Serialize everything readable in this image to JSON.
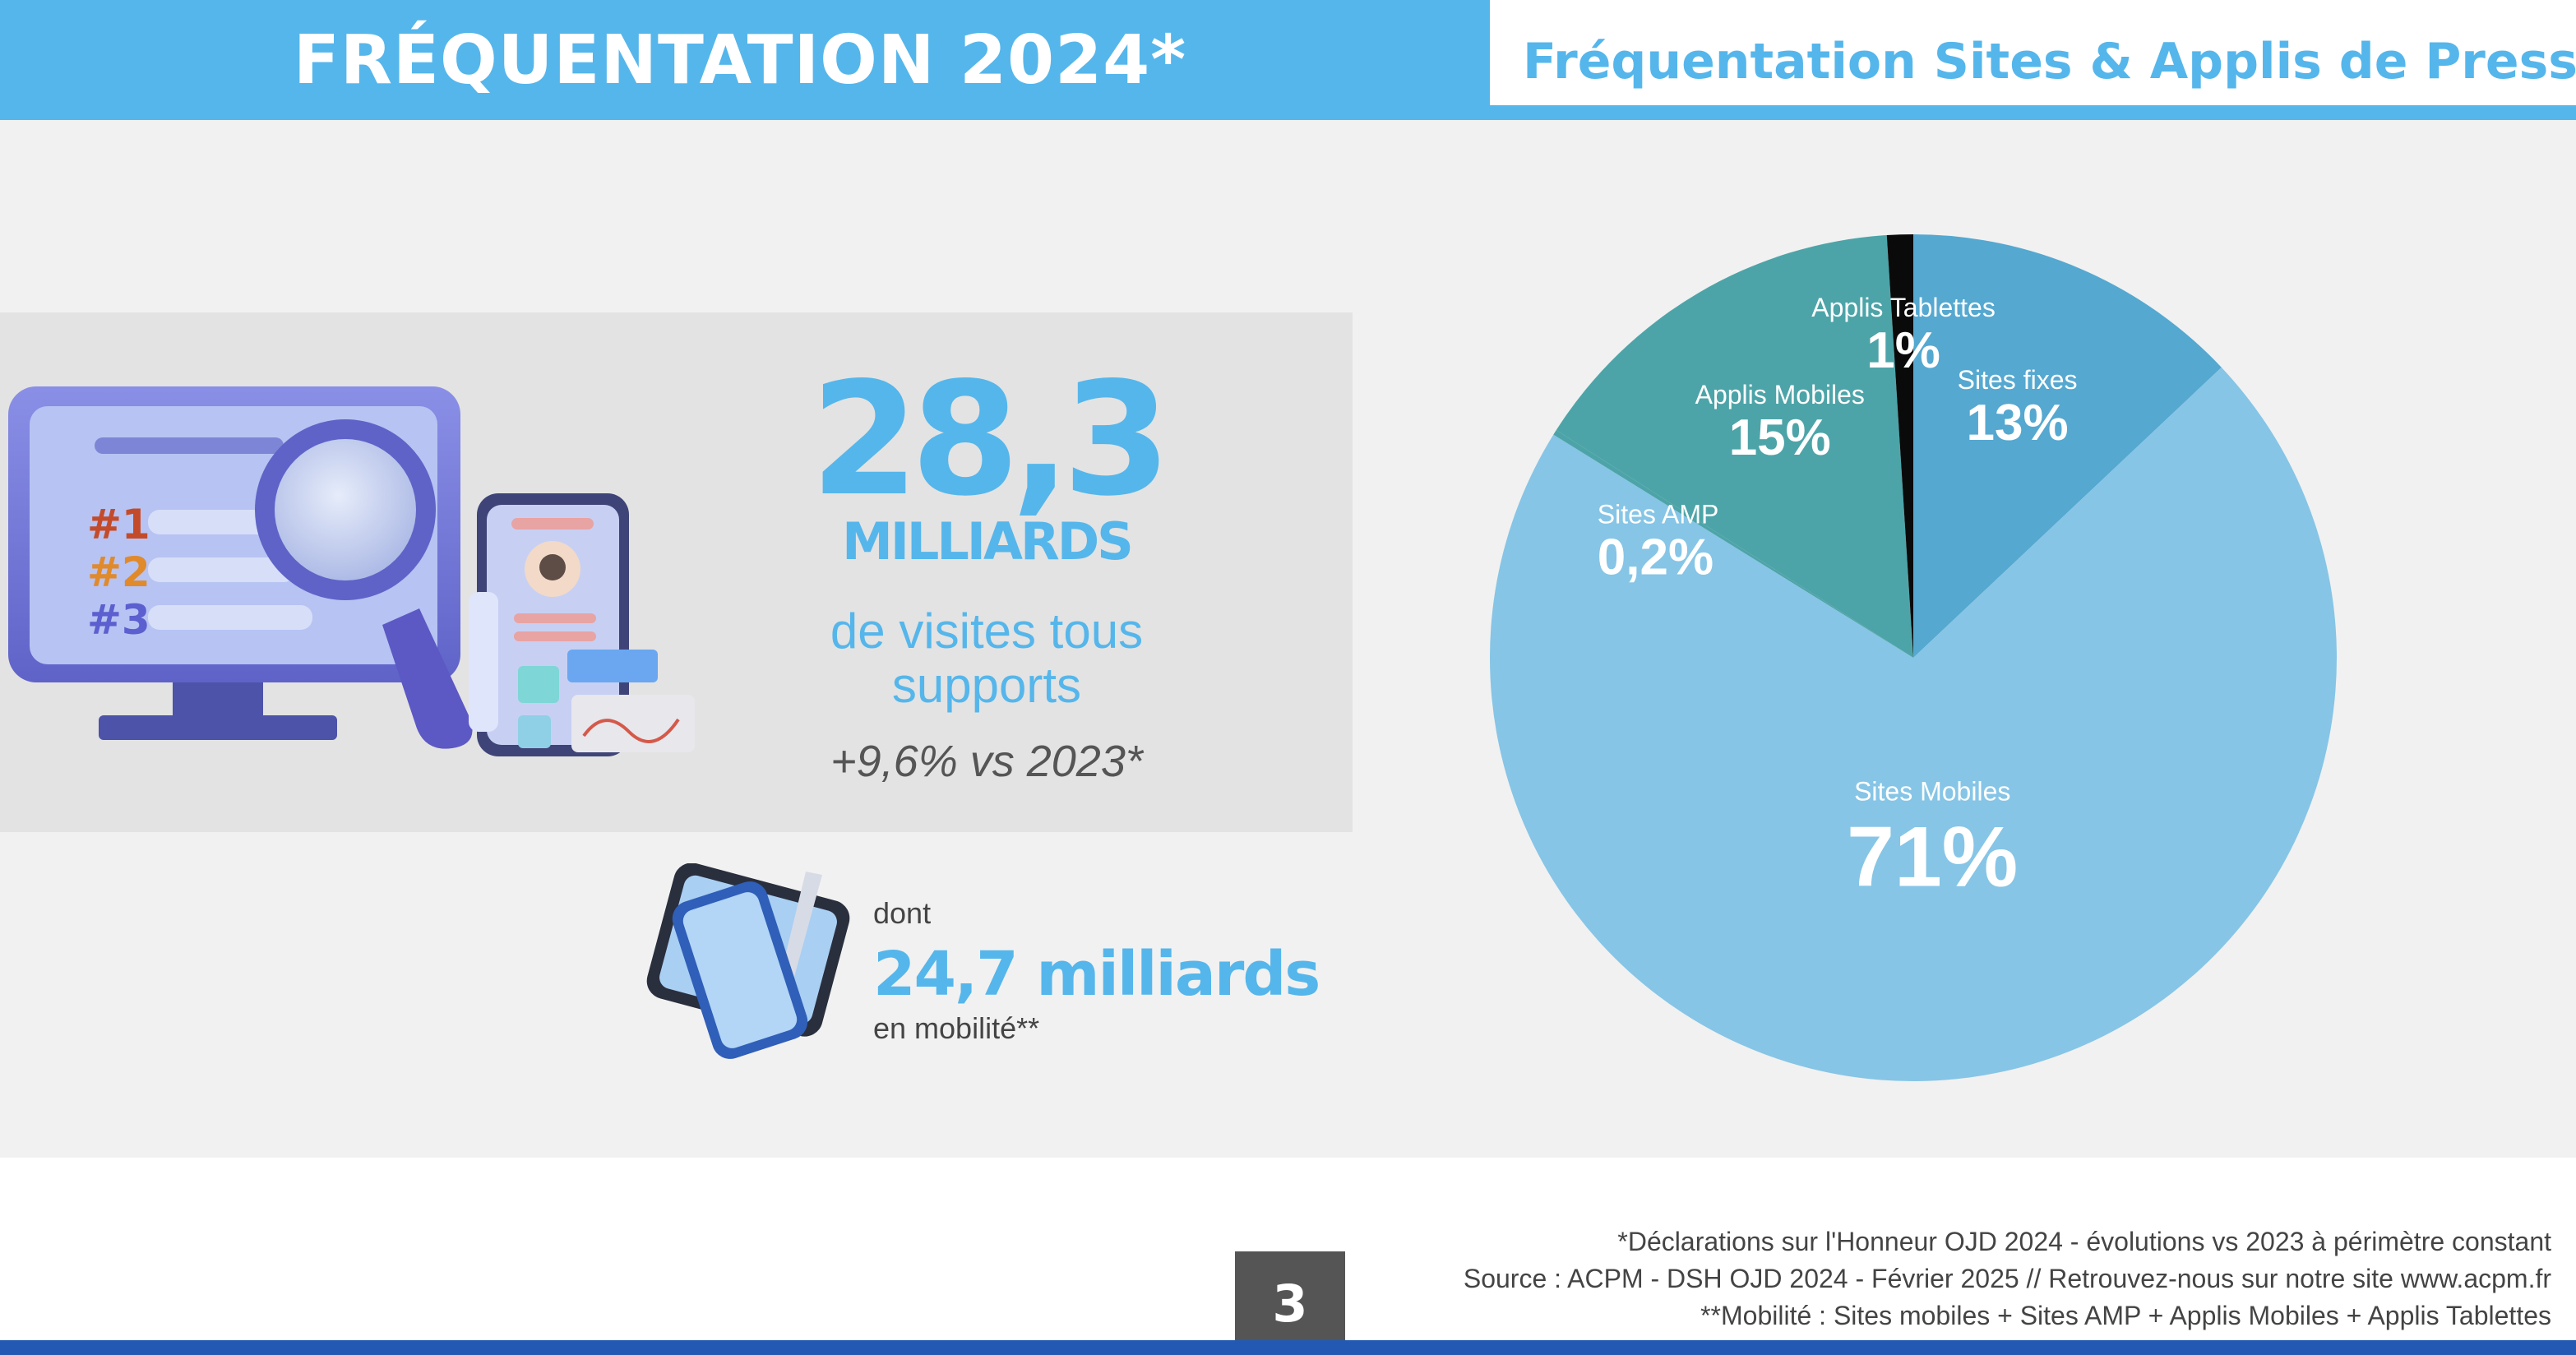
{
  "header": {
    "title": "FRÉQUENTATION 2024*",
    "chart_title": "Fréquentation Sites & Applis de Presse"
  },
  "stats": {
    "big_number": "28,3",
    "big_unit": "MILLIARDS",
    "visits_line1": "de visites tous",
    "visits_line2": "supports",
    "growth": "+9,6% vs 2023*",
    "mobile_prefix": "dont",
    "mobile_value": "24,7 milliards",
    "mobile_suffix": "en mobilité**"
  },
  "illustration": {
    "rank_labels": [
      "#1",
      "#2",
      "#3"
    ]
  },
  "chart_data": {
    "type": "pie",
    "title": "Fréquentation Sites & Applis de Presse",
    "unit": "%",
    "slices": [
      {
        "label": "Sites fixes",
        "display": "13%",
        "value": 13,
        "color": "#55a8d0"
      },
      {
        "label": "Sites Mobiles",
        "display": "71%",
        "value": 71,
        "color": "#86c5e6"
      },
      {
        "label": "Sites AMP",
        "display": "0,2%",
        "value": 0.2,
        "color": "#4da4a8"
      },
      {
        "label": "Applis Mobiles",
        "display": "15%",
        "value": 15,
        "color": "#4da4a8"
      },
      {
        "label": "Applis Tablettes",
        "display": "1%",
        "value": 1,
        "color": "#0a0a0a"
      }
    ]
  },
  "footer": {
    "note1": "*Déclarations sur l'Honneur OJD 2024 - évolutions vs 2023 à périmètre constant",
    "note2": "Source : ACPM - DSH OJD 2024 - Février 2025 // Retrouvez-nous sur notre site www.acpm.fr",
    "note3": "**Mobilité : Sites mobiles + Sites AMP + Applis Mobiles + Applis Tablettes",
    "page_number": "3"
  },
  "colors": {
    "brand_blue": "#55b6eb",
    "dark_blue": "#2459b3",
    "panel_gray": "#e3e3e3"
  }
}
